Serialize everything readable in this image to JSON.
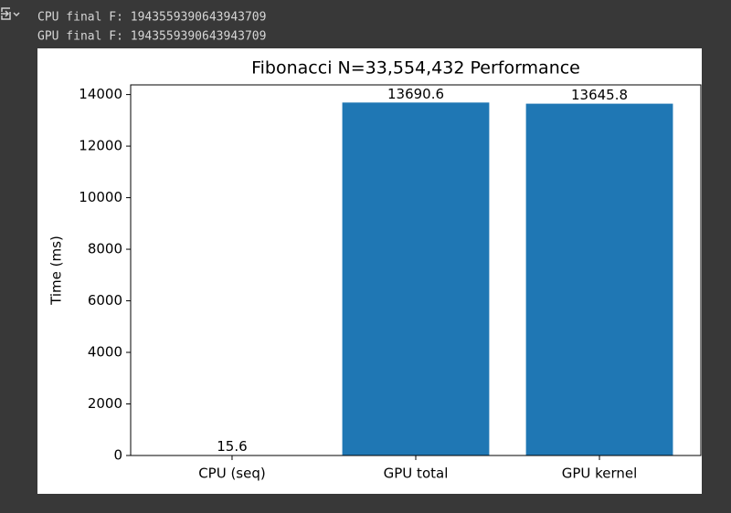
{
  "output": {
    "lines": [
      "CPU final F: 1943559390643943709",
      "GPU final F: 1943559390643943709"
    ]
  },
  "chart_data": {
    "type": "bar",
    "title": "Fibonacci N=33,554,432 Performance",
    "y_label": "Time (ms)",
    "categories": [
      "CPU (seq)",
      "GPU total",
      "GPU kernel"
    ],
    "values": [
      15.6,
      13690.6,
      13645.8
    ],
    "color": "#1f77b4",
    "ylim": [
      0,
      14375
    ],
    "yticks": [
      0,
      2000,
      4000,
      6000,
      8000,
      10000,
      12000,
      14000
    ],
    "grid": false
  }
}
